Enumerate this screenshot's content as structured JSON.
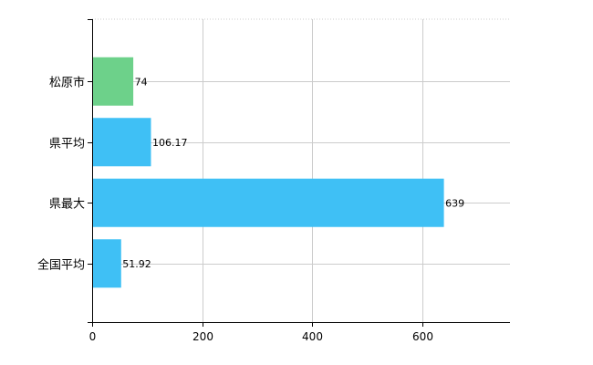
{
  "chart_data": {
    "type": "bar",
    "orientation": "horizontal",
    "categories": [
      "松原市",
      "県平均",
      "県最大",
      "全国平均"
    ],
    "values": [
      74,
      106.17,
      639,
      51.92
    ],
    "data_labels": [
      "74",
      "106.17",
      "639",
      "51.92"
    ],
    "bar_colors": [
      "#6dd18a",
      "#3fc0f5",
      "#3fc0f5",
      "#3fc0f5"
    ],
    "xlim": [
      0,
      760
    ],
    "x_ticks": [
      0,
      200,
      400,
      600
    ],
    "x_tick_labels": [
      "0",
      "200",
      "400",
      "600"
    ],
    "grid": true,
    "title": "",
    "xlabel": "",
    "ylabel": ""
  }
}
